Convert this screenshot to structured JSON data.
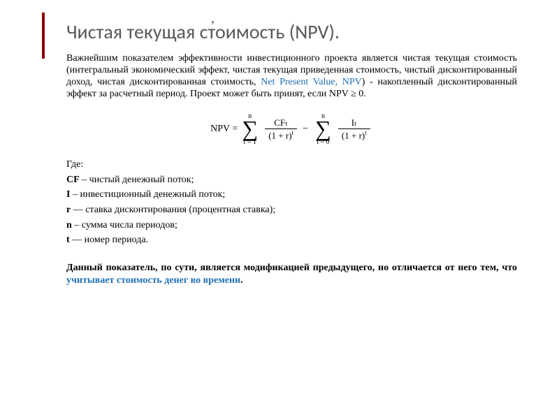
{
  "colors": {
    "title": "#595959",
    "link": "#1f6fb3",
    "text": "#000000",
    "bar": "#8b0000",
    "background": "#ffffff"
  },
  "comma": ",",
  "title": "Чистая текущая стоимость (NPV).",
  "intro": {
    "p1": "Важнейшим показателем эффективности инвестиционного проекта является чистая текущая стоимость (интегральный экономический эффект, чистая текущая приведенная стоимость, чистый дисконтированный доход, чистая дисконтированная стоимость, ",
    "link": "Net Present Value, NPV",
    "p2": ") - накопленный дисконтированный эффект за расчетный период. Проект может быть принят, если NPV ≥ 0."
  },
  "formula": {
    "lhs": "NPV =",
    "sum1": {
      "upper": "n",
      "lower": "t = 1",
      "sign": "∑"
    },
    "frac1": {
      "num": "CFₜ",
      "denom_base": "(1 + r)",
      "denom_exp": "t"
    },
    "minus": "−",
    "sum2": {
      "upper": "n",
      "lower": "t = 0",
      "sign": "∑"
    },
    "frac2": {
      "num": "Iₜ",
      "denom_base": "(1 + r)",
      "denom_exp": "t"
    }
  },
  "where": {
    "heading": "Где:",
    "items": [
      {
        "label": "CF",
        "text": " – чистый денежный поток;"
      },
      {
        "label": "I",
        "text": " – инвестиционный денежный поток;"
      },
      {
        "label": "r",
        "text": " — ставка дисконтирования (процентная ставка);"
      },
      {
        "label": "n",
        "text": " – сумма числа периодов;"
      },
      {
        "label": "t ",
        "text": " — номер периода."
      }
    ]
  },
  "final": {
    "t1": "Данный показатель, по сути, является модификацией предыдущего, но отличается от него тем, что ",
    "highlight": "учитывает стоимость денег во времени",
    "t2": "."
  }
}
